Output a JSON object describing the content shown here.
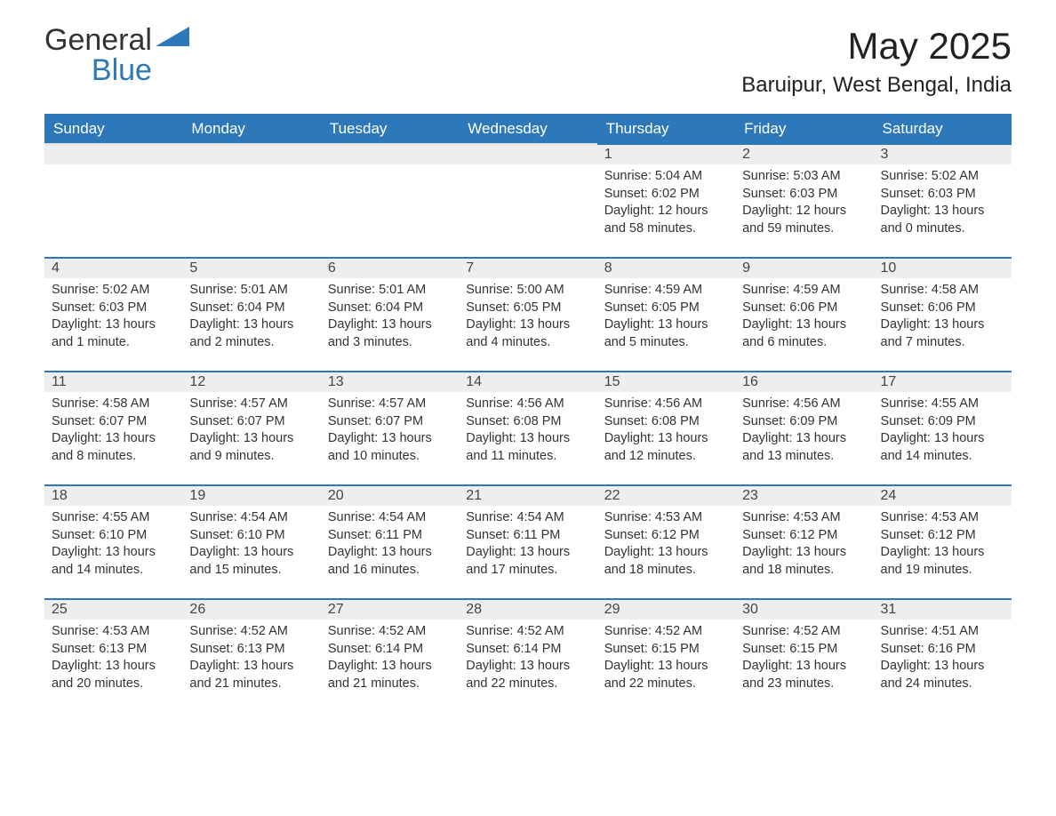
{
  "logo": {
    "word1": "General",
    "word2": "Blue"
  },
  "title": "May 2025",
  "location": "Baruipur, West Bengal, India",
  "colors": {
    "header_bg": "#2d78b8",
    "header_text": "#ffffff",
    "daynum_bg": "#eeeeee",
    "daynum_border": "#2d78b8",
    "text": "#333333",
    "page_bg": "#ffffff"
  },
  "days_of_week": [
    "Sunday",
    "Monday",
    "Tuesday",
    "Wednesday",
    "Thursday",
    "Friday",
    "Saturday"
  ],
  "weeks": [
    [
      null,
      null,
      null,
      null,
      {
        "n": "1",
        "sr": "5:04 AM",
        "ss": "6:02 PM",
        "dl": "12 hours and 58 minutes."
      },
      {
        "n": "2",
        "sr": "5:03 AM",
        "ss": "6:03 PM",
        "dl": "12 hours and 59 minutes."
      },
      {
        "n": "3",
        "sr": "5:02 AM",
        "ss": "6:03 PM",
        "dl": "13 hours and 0 minutes."
      }
    ],
    [
      {
        "n": "4",
        "sr": "5:02 AM",
        "ss": "6:03 PM",
        "dl": "13 hours and 1 minute."
      },
      {
        "n": "5",
        "sr": "5:01 AM",
        "ss": "6:04 PM",
        "dl": "13 hours and 2 minutes."
      },
      {
        "n": "6",
        "sr": "5:01 AM",
        "ss": "6:04 PM",
        "dl": "13 hours and 3 minutes."
      },
      {
        "n": "7",
        "sr": "5:00 AM",
        "ss": "6:05 PM",
        "dl": "13 hours and 4 minutes."
      },
      {
        "n": "8",
        "sr": "4:59 AM",
        "ss": "6:05 PM",
        "dl": "13 hours and 5 minutes."
      },
      {
        "n": "9",
        "sr": "4:59 AM",
        "ss": "6:06 PM",
        "dl": "13 hours and 6 minutes."
      },
      {
        "n": "10",
        "sr": "4:58 AM",
        "ss": "6:06 PM",
        "dl": "13 hours and 7 minutes."
      }
    ],
    [
      {
        "n": "11",
        "sr": "4:58 AM",
        "ss": "6:07 PM",
        "dl": "13 hours and 8 minutes."
      },
      {
        "n": "12",
        "sr": "4:57 AM",
        "ss": "6:07 PM",
        "dl": "13 hours and 9 minutes."
      },
      {
        "n": "13",
        "sr": "4:57 AM",
        "ss": "6:07 PM",
        "dl": "13 hours and 10 minutes."
      },
      {
        "n": "14",
        "sr": "4:56 AM",
        "ss": "6:08 PM",
        "dl": "13 hours and 11 minutes."
      },
      {
        "n": "15",
        "sr": "4:56 AM",
        "ss": "6:08 PM",
        "dl": "13 hours and 12 minutes."
      },
      {
        "n": "16",
        "sr": "4:56 AM",
        "ss": "6:09 PM",
        "dl": "13 hours and 13 minutes."
      },
      {
        "n": "17",
        "sr": "4:55 AM",
        "ss": "6:09 PM",
        "dl": "13 hours and 14 minutes."
      }
    ],
    [
      {
        "n": "18",
        "sr": "4:55 AM",
        "ss": "6:10 PM",
        "dl": "13 hours and 14 minutes."
      },
      {
        "n": "19",
        "sr": "4:54 AM",
        "ss": "6:10 PM",
        "dl": "13 hours and 15 minutes."
      },
      {
        "n": "20",
        "sr": "4:54 AM",
        "ss": "6:11 PM",
        "dl": "13 hours and 16 minutes."
      },
      {
        "n": "21",
        "sr": "4:54 AM",
        "ss": "6:11 PM",
        "dl": "13 hours and 17 minutes."
      },
      {
        "n": "22",
        "sr": "4:53 AM",
        "ss": "6:12 PM",
        "dl": "13 hours and 18 minutes."
      },
      {
        "n": "23",
        "sr": "4:53 AM",
        "ss": "6:12 PM",
        "dl": "13 hours and 18 minutes."
      },
      {
        "n": "24",
        "sr": "4:53 AM",
        "ss": "6:12 PM",
        "dl": "13 hours and 19 minutes."
      }
    ],
    [
      {
        "n": "25",
        "sr": "4:53 AM",
        "ss": "6:13 PM",
        "dl": "13 hours and 20 minutes."
      },
      {
        "n": "26",
        "sr": "4:52 AM",
        "ss": "6:13 PM",
        "dl": "13 hours and 21 minutes."
      },
      {
        "n": "27",
        "sr": "4:52 AM",
        "ss": "6:14 PM",
        "dl": "13 hours and 21 minutes."
      },
      {
        "n": "28",
        "sr": "4:52 AM",
        "ss": "6:14 PM",
        "dl": "13 hours and 22 minutes."
      },
      {
        "n": "29",
        "sr": "4:52 AM",
        "ss": "6:15 PM",
        "dl": "13 hours and 22 minutes."
      },
      {
        "n": "30",
        "sr": "4:52 AM",
        "ss": "6:15 PM",
        "dl": "13 hours and 23 minutes."
      },
      {
        "n": "31",
        "sr": "4:51 AM",
        "ss": "6:16 PM",
        "dl": "13 hours and 24 minutes."
      }
    ]
  ],
  "labels": {
    "sunrise": "Sunrise: ",
    "sunset": "Sunset: ",
    "daylight": "Daylight: "
  }
}
